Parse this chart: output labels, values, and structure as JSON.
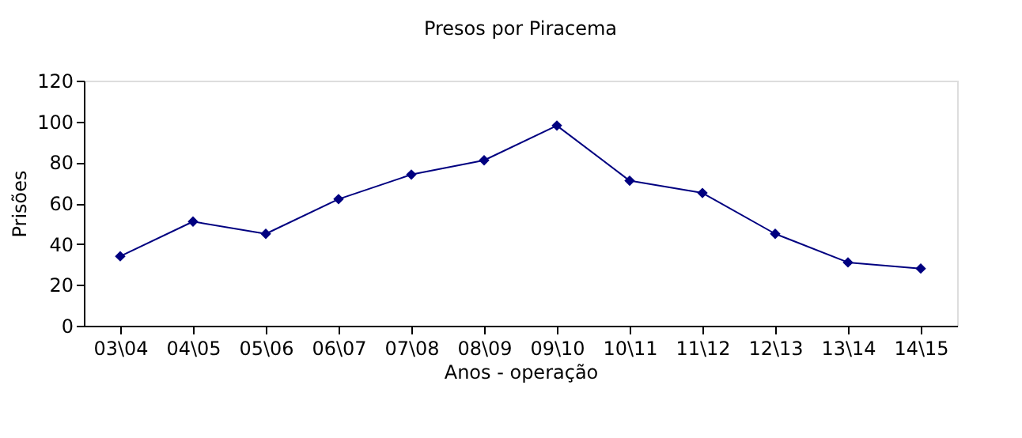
{
  "chart_data": {
    "type": "line",
    "title": "Presos por Piracema",
    "xlabel": "Anos - operação",
    "ylabel": "Prisões",
    "categories": [
      "03\\04",
      "04\\05",
      "05\\06",
      "06\\07",
      "07\\08",
      "08\\09",
      "09\\10",
      "10\\11",
      "11\\12",
      "12\\13",
      "13\\14",
      "14\\15"
    ],
    "series": [
      {
        "color": "#000080",
        "values": [
          34,
          51,
          45,
          62,
          74,
          81,
          98,
          71,
          65,
          45,
          31,
          28
        ]
      }
    ],
    "ylim": [
      0,
      120
    ],
    "yticks": [
      0,
      20,
      40,
      60,
      80,
      100,
      120
    ],
    "grid": false,
    "legend": false,
    "marker": "diamond",
    "line_style": "solid"
  }
}
